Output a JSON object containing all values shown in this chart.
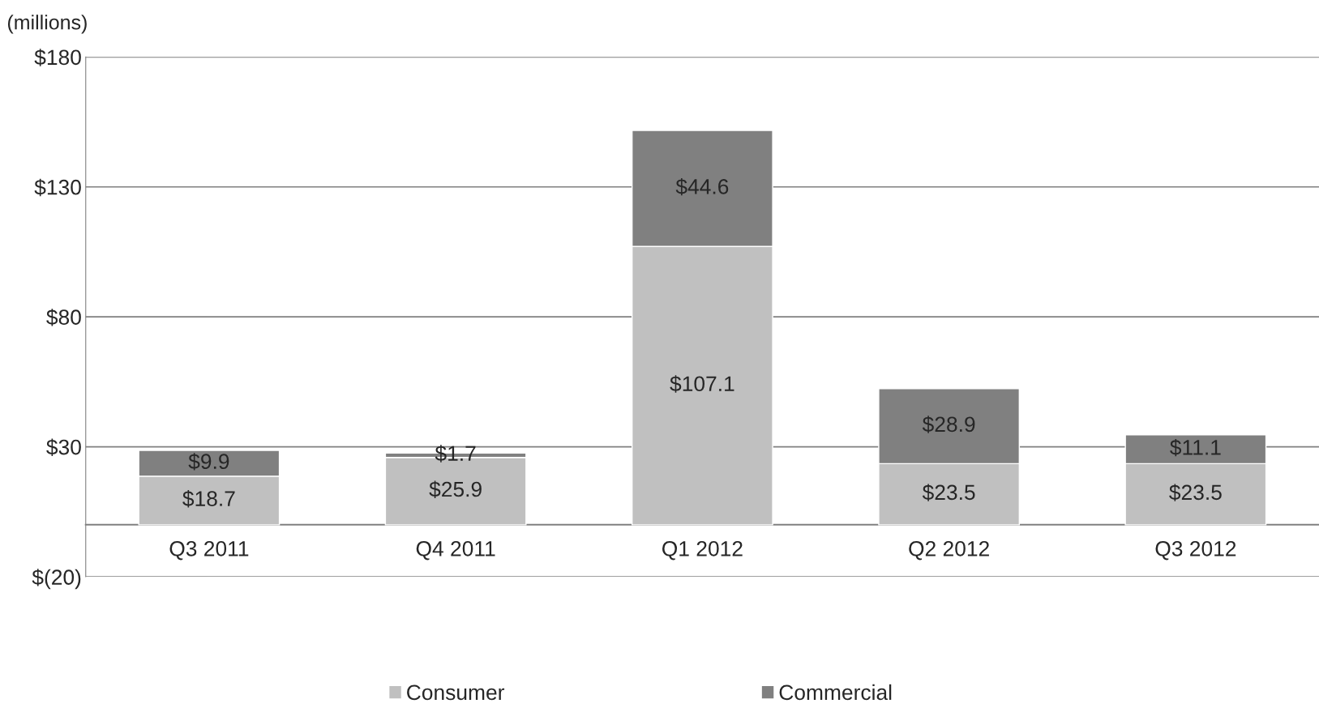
{
  "chart_data": {
    "type": "bar",
    "stacked": true,
    "ylabel": "(millions)",
    "categories": [
      "Q3 2011",
      "Q4 2011",
      "Q1 2012",
      "Q2 2012",
      "Q3 2012"
    ],
    "series": [
      {
        "name": "Consumer",
        "color": "#c0c0c0",
        "values": [
          18.7,
          25.9,
          107.1,
          23.5,
          23.5
        ],
        "value_labels": [
          "$18.7",
          "$25.9",
          "$107.1",
          "$23.5",
          "$23.5"
        ]
      },
      {
        "name": "Commercial",
        "color": "#808080",
        "values": [
          9.9,
          1.7,
          44.6,
          28.9,
          11.1
        ],
        "value_labels": [
          "$9.9",
          "$1.7",
          "$44.6",
          "$28.9",
          "$11.1"
        ]
      }
    ],
    "ylim": [
      -20,
      180
    ],
    "yticks": [
      {
        "value": -20,
        "label": "$(20)"
      },
      {
        "value": 30,
        "label": "$30"
      },
      {
        "value": 80,
        "label": "$80"
      },
      {
        "value": 130,
        "label": "$130"
      },
      {
        "value": 180,
        "label": "$180"
      }
    ],
    "grid": "y",
    "legend": "bottom"
  }
}
